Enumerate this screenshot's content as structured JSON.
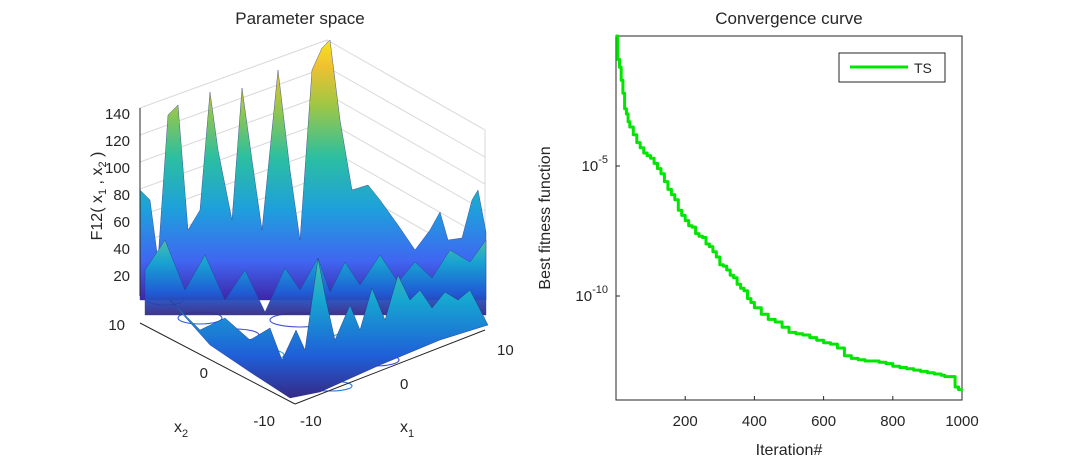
{
  "chart_data": [
    {
      "type": "surface3d",
      "title": "Parameter space",
      "zlabel": {
        "base": "F12( x",
        "s1": "1",
        "sep": " , x",
        "s2": "2",
        "close": " )"
      },
      "xlabel": {
        "base": "x",
        "sub": "1"
      },
      "ylabel": {
        "base": "x",
        "sub": "2"
      },
      "xlim": [
        -10,
        10
      ],
      "ylim": [
        -10,
        10
      ],
      "zlim": [
        0,
        150
      ],
      "x_ticks": [
        "-10",
        "0",
        "10"
      ],
      "y_ticks": [
        "-10",
        "0",
        "10"
      ],
      "z_ticks": [
        "20",
        "40",
        "60",
        "80",
        "100",
        "120",
        "140"
      ],
      "peaks_back_row_z": [
        80,
        130,
        128,
        135,
        142,
        148
      ],
      "colormap": "parula"
    },
    {
      "type": "line",
      "title": "Convergence curve",
      "xlabel": "Iteration#",
      "ylabel": "Best fitness function",
      "yscale": "log",
      "xlim": [
        0,
        1000
      ],
      "x_ticks": [
        "200",
        "400",
        "600",
        "800",
        "1000"
      ],
      "y_ticks": [
        {
          "base": "10",
          "exp": "-5",
          "value": -5
        },
        {
          "base": "10",
          "exp": "-10",
          "value": -10
        }
      ],
      "ylim_log10": [
        -14,
        0
      ],
      "series": [
        {
          "name": "TS",
          "color": "#00e600",
          "x": [
            1,
            5,
            10,
            15,
            20,
            25,
            30,
            35,
            40,
            50,
            60,
            70,
            80,
            90,
            100,
            110,
            120,
            130,
            140,
            150,
            160,
            170,
            180,
            190,
            200,
            210,
            220,
            230,
            240,
            250,
            260,
            270,
            280,
            290,
            300,
            310,
            320,
            330,
            340,
            350,
            360,
            370,
            380,
            390,
            400,
            420,
            440,
            460,
            480,
            500,
            520,
            540,
            560,
            580,
            600,
            620,
            640,
            660,
            680,
            700,
            720,
            740,
            760,
            780,
            800,
            820,
            840,
            860,
            880,
            900,
            920,
            940,
            950,
            960,
            970,
            980,
            990,
            1000
          ],
          "y_log10": [
            0,
            -0.9,
            -1.2,
            -1.7,
            -2.2,
            -2.8,
            -3.0,
            -3.3,
            -3.5,
            -3.8,
            -4.1,
            -4.3,
            -4.5,
            -4.6,
            -4.7,
            -4.9,
            -5.1,
            -5.3,
            -5.6,
            -5.9,
            -6.1,
            -6.3,
            -6.7,
            -6.9,
            -7.1,
            -7.3,
            -7.35,
            -7.6,
            -7.7,
            -7.75,
            -8.0,
            -8.1,
            -8.3,
            -8.5,
            -8.8,
            -8.85,
            -9.0,
            -9.2,
            -9.3,
            -9.55,
            -9.7,
            -9.8,
            -10.1,
            -10.25,
            -10.45,
            -10.7,
            -10.9,
            -11.0,
            -11.2,
            -11.4,
            -11.45,
            -11.5,
            -11.6,
            -11.7,
            -11.8,
            -11.85,
            -12.0,
            -12.3,
            -12.4,
            -12.45,
            -12.5,
            -12.5,
            -12.55,
            -12.6,
            -12.7,
            -12.75,
            -12.8,
            -12.85,
            -12.9,
            -12.95,
            -13.0,
            -13.05,
            -13.1,
            -13.1,
            -13.1,
            -13.5,
            -13.6,
            -13.6
          ]
        }
      ],
      "legend": {
        "location": "top-right"
      }
    }
  ]
}
